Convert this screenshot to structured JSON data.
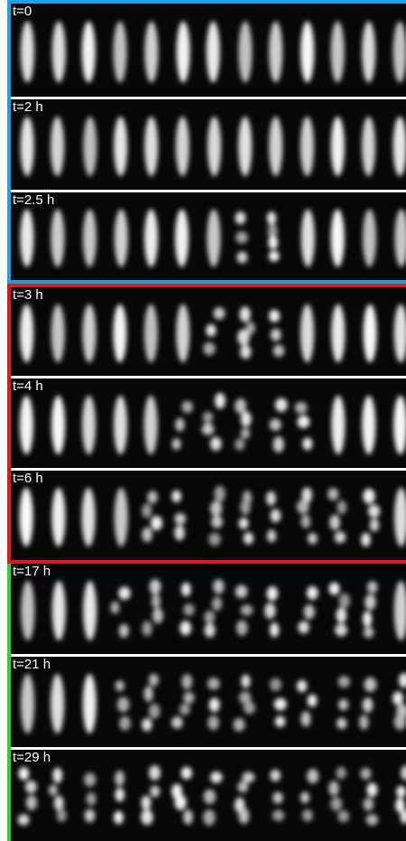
{
  "groups": [
    {
      "color": "#1aa3e0",
      "panels": [
        {
          "label": "t=0",
          "division_fraction": 0.0
        },
        {
          "label": "t=2 h",
          "division_fraction": 0.0
        },
        {
          "label": "t=2.5 h",
          "division_fraction": 0.17
        }
      ]
    },
    {
      "color": "#e3161a",
      "panels": [
        {
          "label": "t=3 h",
          "division_fraction": 0.25
        },
        {
          "label": "t=4 h",
          "division_fraction": 0.42
        },
        {
          "label": "t=6 h",
          "division_fraction": 0.58
        }
      ]
    },
    {
      "color": "#2bd61f",
      "panels": [
        {
          "label": "t=17 h",
          "division_fraction": 0.67
        },
        {
          "label": "t=21 h",
          "division_fraction": 0.75
        },
        {
          "label": "t=29 h",
          "division_fraction": 1.0
        }
      ]
    }
  ]
}
